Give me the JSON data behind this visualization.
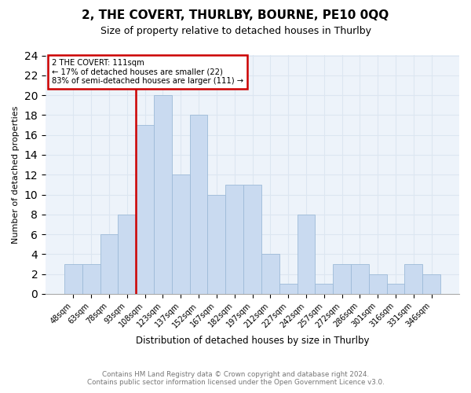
{
  "title": "2, THE COVERT, THURLBY, BOURNE, PE10 0QQ",
  "subtitle": "Size of property relative to detached houses in Thurlby",
  "xlabel": "Distribution of detached houses by size in Thurlby",
  "ylabel": "Number of detached properties",
  "categories": [
    "48sqm",
    "63sqm",
    "78sqm",
    "93sqm",
    "108sqm",
    "123sqm",
    "137sqm",
    "152sqm",
    "167sqm",
    "182sqm",
    "197sqm",
    "212sqm",
    "227sqm",
    "242sqm",
    "257sqm",
    "272sqm",
    "286sqm",
    "301sqm",
    "316sqm",
    "331sqm",
    "346sqm"
  ],
  "values": [
    3,
    3,
    6,
    8,
    17,
    20,
    12,
    18,
    10,
    11,
    11,
    4,
    1,
    8,
    1,
    3,
    3,
    2,
    1,
    3,
    2
  ],
  "bar_color": "#c9daf0",
  "bar_edge_color": "#9dbad8",
  "ref_line_index": 4,
  "ref_line_label": "2 THE COVERT: 111sqm",
  "annotation_line1": "← 17% of detached houses are smaller (22)",
  "annotation_line2": "83% of semi-detached houses are larger (111) →",
  "annotation_box_facecolor": "#ffffff",
  "annotation_box_edgecolor": "#cc0000",
  "ref_line_color": "#cc0000",
  "ylim": [
    0,
    24
  ],
  "grid_color": "#dce6f1",
  "plot_bg_color": "#edf3fa",
  "footer_line1": "Contains HM Land Registry data © Crown copyright and database right 2024.",
  "footer_line2": "Contains public sector information licensed under the Open Government Licence v3.0."
}
